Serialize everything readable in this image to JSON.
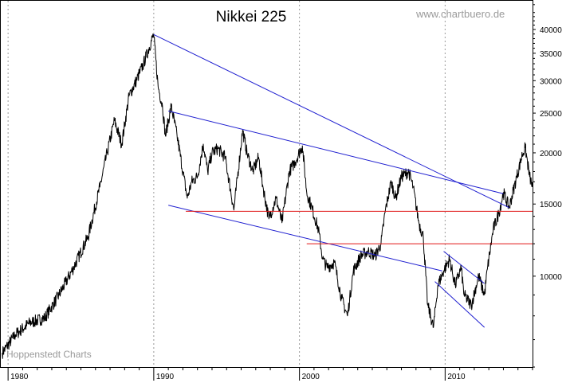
{
  "chart_data": {
    "type": "line",
    "title": "Nikkei 225",
    "watermark_top": "www.chartbuero.de",
    "watermark_bottom": "Hoppenstedt Charts",
    "y_scale": "log",
    "ylim": [
      6000,
      47000
    ],
    "xlim": [
      1979.5,
      2016.0
    ],
    "y_ticks": [
      {
        "value": 40000,
        "label": "40000"
      },
      {
        "value": 35000,
        "label": "35000"
      },
      {
        "value": 30000,
        "label": "30000"
      },
      {
        "value": 25000,
        "label": "25000"
      },
      {
        "value": 20000,
        "label": "20000"
      },
      {
        "value": 15000,
        "label": "15000"
      },
      {
        "value": 10000,
        "label": "10000"
      }
    ],
    "x_ticks": [
      {
        "value": 1980,
        "label": "1980"
      },
      {
        "value": 1990,
        "label": "1990"
      },
      {
        "value": 2000,
        "label": "2000"
      },
      {
        "value": 2010,
        "label": "2010"
      }
    ],
    "grid": "vertical dashed at decades",
    "colors": {
      "price": "#000000",
      "trend": "#1f1fd0",
      "support": "#e01818",
      "watermark": "#9a9a9a"
    },
    "series": [
      {
        "values_note_free": true,
        "x": [
          1979.6,
          1980.5,
          1981.5,
          1982.5,
          1983.5,
          1984.5,
          1985.5,
          1986.3,
          1986.8,
          1987.3,
          1987.8,
          1988.3,
          1988.8,
          1989.3,
          1989.99,
          1990.3,
          1990.6,
          1990.8,
          1991.2,
          1991.6,
          1992.0,
          1992.3,
          1992.6,
          1993.0,
          1993.4,
          1993.7,
          1994.0,
          1994.4,
          1994.9,
          1995.5,
          1996.1,
          1996.4,
          1996.8,
          1997.2,
          1997.5,
          1997.9,
          1998.4,
          1998.8,
          1999.3,
          1999.7,
          2000.2,
          2000.5,
          2000.9,
          2001.3,
          2001.6,
          2001.9,
          2002.4,
          2002.9,
          2003.3,
          2003.7,
          2004.2,
          2004.7,
          2005.2,
          2005.6,
          2005.9,
          2006.3,
          2006.6,
          2007.0,
          2007.5,
          2007.8,
          2008.2,
          2008.5,
          2008.8,
          2009.2,
          2009.5,
          2009.9,
          2010.3,
          2010.7,
          2011.1,
          2011.3,
          2011.8,
          2012.3,
          2012.7,
          2012.9,
          2013.3,
          2013.7,
          2014.0,
          2014.4,
          2014.9,
          2015.3,
          2015.5,
          2015.8,
          2016.0
        ],
        "values": [
          6500,
          7200,
          7700,
          7900,
          9000,
          10500,
          12500,
          16500,
          20000,
          24000,
          21000,
          27500,
          30000,
          33000,
          38900,
          29000,
          26000,
          22000,
          26000,
          22000,
          18000,
          15500,
          17000,
          17500,
          21000,
          18000,
          20000,
          20500,
          19500,
          14500,
          22700,
          20000,
          18000,
          19500,
          16500,
          13800,
          15500,
          13500,
          18000,
          19000,
          20800,
          16000,
          14500,
          13000,
          11000,
          10500,
          10800,
          8800,
          8000,
          10300,
          11200,
          11500,
          11200,
          12000,
          14500,
          17000,
          15500,
          17500,
          18000,
          16500,
          13500,
          12500,
          8500,
          7500,
          9500,
          10300,
          11000,
          9500,
          10500,
          9000,
          8500,
          10000,
          9000,
          10400,
          13000,
          14300,
          16000,
          14700,
          17400,
          19800,
          20600,
          17500,
          16500
        ]
      }
    ],
    "trend_lines": [
      {
        "x": [
          1989.99,
          2014.4
        ],
        "y": [
          38900,
          14700
        ]
      },
      {
        "x": [
          1991.0,
          2014.0
        ],
        "y": [
          25300,
          15900
        ]
      },
      {
        "x": [
          1991.0,
          2009.8
        ],
        "y": [
          14900,
          10300
        ]
      },
      {
        "x": [
          2009.3,
          2012.7
        ],
        "y": [
          9700,
          7500
        ]
      },
      {
        "x": [
          2009.9,
          2012.7
        ],
        "y": [
          11500,
          9600
        ]
      }
    ],
    "support_lines": [
      {
        "x": [
          1992.2,
          2016.0
        ],
        "y": [
          14400,
          14400
        ]
      },
      {
        "x": [
          2000.5,
          2016.0
        ],
        "y": [
          12000,
          12000
        ]
      }
    ]
  }
}
